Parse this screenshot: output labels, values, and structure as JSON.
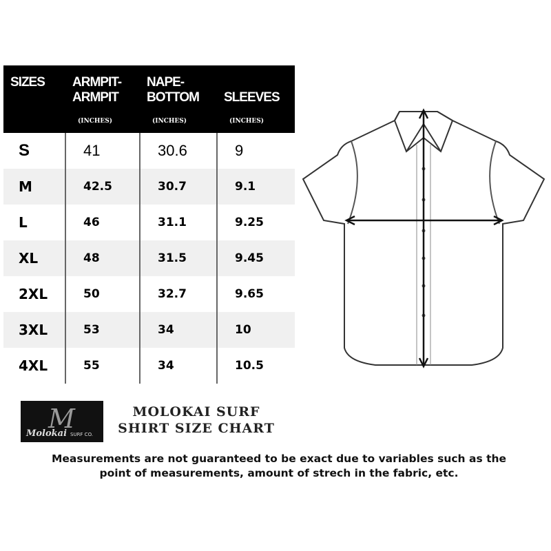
{
  "table": {
    "headers": [
      {
        "label": "SIZES",
        "unit": ""
      },
      {
        "label": "ARMPIT-\nARMPIT",
        "unit": "(INCHES)"
      },
      {
        "label": "NAPE-\nBOTTOM",
        "unit": "(INCHES)"
      },
      {
        "label": "\nSLEEVES",
        "unit": "(INCHES)"
      }
    ],
    "rows": [
      [
        "S",
        "41",
        "30.6",
        "9"
      ],
      [
        "M",
        "42.5",
        "30.7",
        "9.1"
      ],
      [
        "L",
        "46",
        "31.1",
        "9.25"
      ],
      [
        "XL",
        "48",
        "31.5",
        "9.45"
      ],
      [
        "2XL",
        "50",
        "32.7",
        "9.65"
      ],
      [
        "3XL",
        "53",
        "34",
        "10"
      ],
      [
        "4XL",
        "55",
        "34",
        "10.5"
      ]
    ]
  },
  "logo": {
    "text": "Molokai",
    "sub": "SURF CO."
  },
  "title": {
    "line1": "MOLOKAI SURF",
    "line2": "SHIRT SIZE CHART"
  },
  "note": {
    "line1": "Measurements are not guaranteed to be exact due to variables such as the",
    "line2": "point of measurements, amount of strech in the fabric, etc."
  }
}
